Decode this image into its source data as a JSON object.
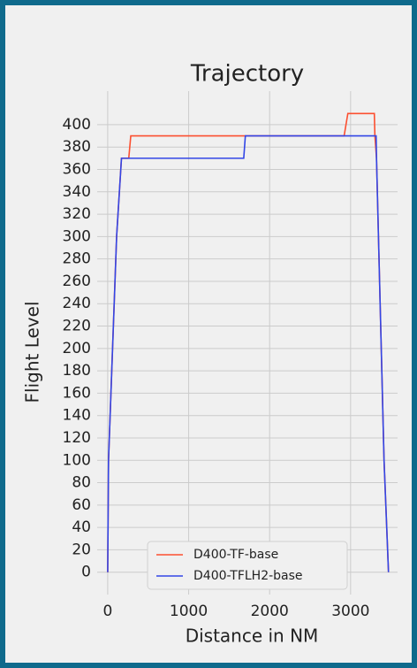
{
  "chart_data": {
    "type": "line",
    "title": "Trajectory",
    "x_label": "Distance in NM",
    "y_label": "Flight Level",
    "series": [
      {
        "name": "D400-TF-base",
        "color": "#fc4f30",
        "x": [
          0,
          10,
          60,
          110,
          170,
          260,
          285,
          2920,
          2966,
          3293,
          3300,
          3320,
          3413,
          3468
        ],
        "values": [
          0,
          100,
          200,
          300,
          370,
          370,
          390,
          390,
          410,
          410,
          390,
          370,
          100,
          0
        ]
      },
      {
        "name": "D400-TFLH2-base",
        "color": "#3246e6",
        "x": [
          0,
          10,
          60,
          110,
          170,
          1680,
          1700,
          3315,
          3320,
          3413,
          3468
        ],
        "values": [
          0,
          100,
          200,
          300,
          370,
          370,
          390,
          390,
          370,
          100,
          0
        ]
      }
    ],
    "xlim": [
      -130,
      3580
    ],
    "ylim": [
      -20,
      430
    ],
    "xticks": [
      0,
      1000,
      2000,
      3000
    ],
    "yticks": [
      0,
      20,
      40,
      60,
      80,
      100,
      120,
      140,
      160,
      180,
      200,
      220,
      240,
      260,
      280,
      300,
      320,
      340,
      360,
      380,
      400
    ],
    "grid": true,
    "legend": "lower center"
  }
}
